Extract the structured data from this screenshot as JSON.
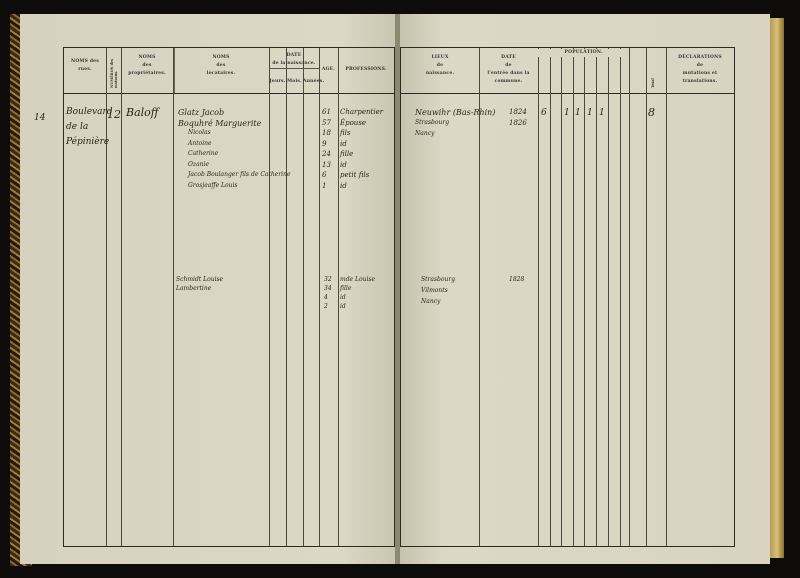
{
  "left_page": {
    "headers": {
      "rues": "NOMS des rues.",
      "numeros": "NUMÉROS des maisons.",
      "proprietaires": [
        "NOMS",
        "des",
        "propriétaires."
      ],
      "locataires": [
        "NOMS",
        "des",
        "locataires."
      ],
      "date_naissance": [
        "DATE",
        "de la naissance."
      ],
      "jours": "Jours.",
      "mois": "Mois.",
      "annees": "Années.",
      "age": "AGE.",
      "professions": "PROFESSIONS."
    },
    "row_number": "14",
    "rue": [
      "Boulevard",
      "de la",
      "Pépinière"
    ],
    "numero": "12",
    "proprietaire": "Baloff",
    "entries": [
      {
        "nom": "Glatz  Jacob",
        "age": "61",
        "profession": "Charpentier"
      },
      {
        "nom": "Boquhré  Marguerite",
        "age": "57",
        "profession": "Épouse"
      },
      {
        "nom": "Nicolas",
        "age": "18",
        "profession": "fils"
      },
      {
        "nom": "Antoine",
        "age": "9",
        "profession": "id"
      },
      {
        "nom": "Catherine",
        "age": "24",
        "profession": "fille"
      },
      {
        "nom": "Ozanie",
        "age": "13",
        "profession": "id"
      },
      {
        "nom": "Jacob Boulanger fils de Catherine",
        "age": "6",
        "profession": "petit fils"
      },
      {
        "nom": "Grosjeaffe Louis",
        "age": "1",
        "profession": "id"
      }
    ],
    "entries2": [
      {
        "nom": "Schmidt Louise",
        "age": "32",
        "profession": "mde Louise"
      },
      {
        "nom": "Lambertine",
        "age": "34",
        "profession": "fille"
      },
      {
        "nom": "",
        "age": "4",
        "profession": "id"
      },
      {
        "nom": "",
        "age": "2",
        "profession": "id"
      }
    ]
  },
  "right_page": {
    "headers": {
      "lieux": [
        "LIEUX",
        "de",
        "naissance."
      ],
      "date_entree": [
        "DATE",
        "de",
        "l'entrée dans la commune."
      ],
      "population": "POPULATION.",
      "total": "Total",
      "declarations": [
        "DÉCLARATIONS",
        "de",
        "mutations et translations."
      ]
    },
    "entries": [
      {
        "lieu": "Neuwihr (Bas-Rhin)",
        "date": "1824"
      },
      {
        "lieu": "Strasbourg",
        "date": "1826"
      },
      {
        "lieu": "Nancy",
        "date": ""
      }
    ],
    "population_counts": [
      "6",
      "1",
      "1",
      "1",
      "1"
    ],
    "total": "8",
    "entries2": [
      {
        "lieu": "Strasbourg",
        "date": "1828"
      },
      {
        "lieu": "Vilmonts",
        "date": ""
      },
      {
        "lieu": "Nancy",
        "date": ""
      }
    ]
  }
}
